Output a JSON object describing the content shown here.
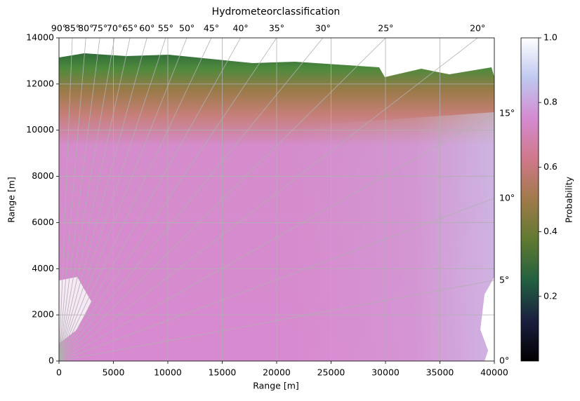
{
  "chart_data": {
    "type": "radar-field",
    "title": "Hydrometeorclassification",
    "x_label": "Range [m]",
    "y_label": "Range [m]",
    "xlim": [
      0,
      40000
    ],
    "xticks": [
      0,
      5000,
      10000,
      15000,
      20000,
      25000,
      30000,
      35000,
      40000
    ],
    "ylim": [
      0,
      14000
    ],
    "yticks": [
      0,
      2000,
      4000,
      6000,
      8000,
      10000,
      12000,
      14000
    ],
    "top_angle_ticks": [
      {
        "value": 90,
        "label": "90°"
      },
      {
        "value": 85,
        "label": "85°"
      },
      {
        "value": 80,
        "label": "80°"
      },
      {
        "value": 75,
        "label": "75°"
      },
      {
        "value": 70,
        "label": "70°"
      },
      {
        "value": 65,
        "label": "65°"
      },
      {
        "value": 60,
        "label": "60°"
      },
      {
        "value": 55,
        "label": "55°"
      },
      {
        "value": 50,
        "label": "50°"
      },
      {
        "value": 45,
        "label": "45°"
      },
      {
        "value": 40,
        "label": "40°"
      },
      {
        "value": 35,
        "label": "35°"
      },
      {
        "value": 30,
        "label": "30°"
      },
      {
        "value": 25,
        "label": "25°"
      },
      {
        "value": 20,
        "label": "20°"
      }
    ],
    "right_angle_ticks": [
      {
        "value": 0,
        "label": "0°"
      },
      {
        "value": 5,
        "label": "5°"
      },
      {
        "value": 10,
        "label": "10°"
      },
      {
        "value": 15,
        "label": "15°"
      }
    ],
    "grid": true,
    "colorbar": {
      "label": "Probability",
      "lim": [
        0,
        1
      ],
      "ticks": [
        0.2,
        0.4,
        0.6,
        0.8,
        {
          "value": 1,
          "label": "1.0"
        }
      ],
      "colors": [
        "#000000",
        "#1b1f3f",
        "#226040",
        "#607a30",
        "#a07a4a",
        "#d0788a",
        "#d48ad0",
        "#bfc8f0",
        "#ffffff"
      ]
    }
  }
}
